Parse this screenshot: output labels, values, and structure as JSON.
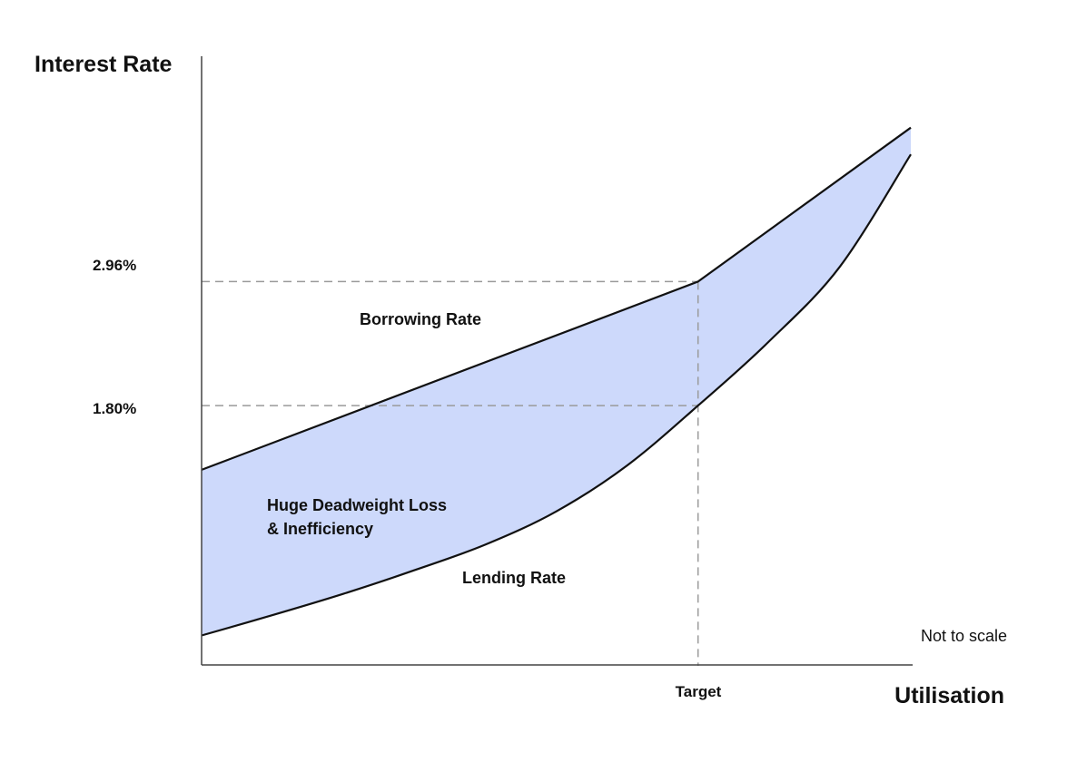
{
  "chart_data": {
    "type": "area",
    "ylabel": "Interest Rate",
    "xlabel": "Utilisation",
    "y_ticks": [
      {
        "label": "2.96%",
        "value": 2.96
      },
      {
        "label": "1.80%",
        "value": 1.8
      }
    ],
    "x_ticks": [
      {
        "label": "Target",
        "value": 0.7
      }
    ],
    "series": [
      {
        "name": "Borrowing Rate",
        "x": [
          0,
          0.7,
          1.0
        ],
        "values": [
          1.2,
          2.96,
          4.4
        ]
      },
      {
        "name": "Lending Rate",
        "x": [
          0.0,
          0.1,
          0.2,
          0.3,
          0.4,
          0.5,
          0.6,
          0.7,
          0.8,
          0.9,
          1.0
        ],
        "values": [
          -0.35,
          -0.16,
          0.04,
          0.26,
          0.5,
          0.81,
          1.24,
          1.8,
          2.4,
          3.1,
          4.15
        ]
      }
    ],
    "annotations": [
      {
        "text": "Huge Deadweight Loss",
        "line": 1
      },
      {
        "text": "& Inefficiency",
        "line": 2
      },
      {
        "text": "Not to scale"
      }
    ],
    "colors": {
      "fill": "#cdd9fb",
      "lines": "#111111",
      "guides": "#9a9a9a"
    },
    "xlim": [
      0,
      1.0
    ],
    "ylim": [
      -0.6,
      5.0
    ],
    "grid": false
  }
}
